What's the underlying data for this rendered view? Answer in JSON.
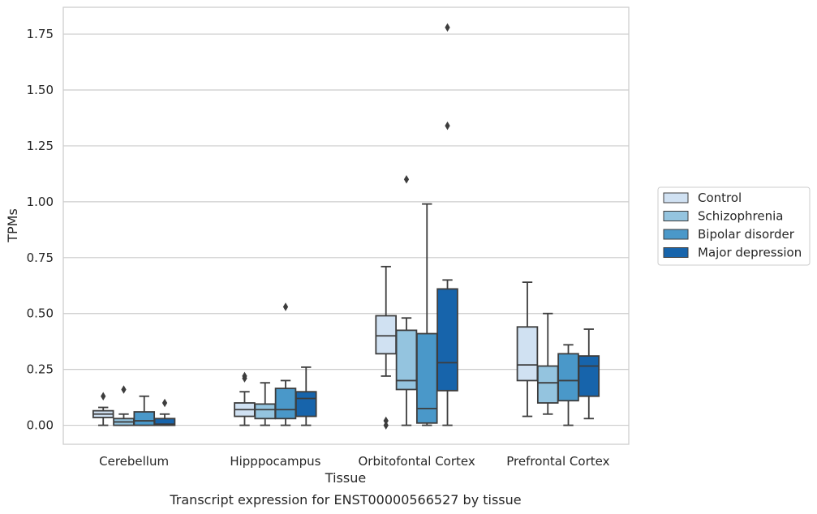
{
  "chart_data": {
    "type": "box",
    "title": "Transcript expression for ENST00000566527 by tissue",
    "xlabel": "Tissue",
    "ylabel": "TPMs",
    "ylim": [
      -0.085,
      1.87
    ],
    "yticks": [
      "0.00",
      "0.25",
      "0.50",
      "0.75",
      "1.00",
      "1.25",
      "1.50",
      "1.75"
    ],
    "grid": true,
    "legend_position": "right",
    "categories": [
      "Cerebellum",
      "Hipppocampus",
      "Orbitofontal Cortex",
      "Prefrontal Cortex"
    ],
    "series": [
      {
        "name": "Control",
        "color": "#d0e1f2",
        "boxes": [
          {
            "whislo": 0.0,
            "q1": 0.035,
            "med": 0.05,
            "q3": 0.065,
            "whishi": 0.08,
            "fliers": [
              0.13
            ]
          },
          {
            "whislo": 0.0,
            "q1": 0.04,
            "med": 0.07,
            "q3": 0.1,
            "whishi": 0.15,
            "fliers": [
              0.21,
              0.22
            ]
          },
          {
            "whislo": 0.22,
            "q1": 0.32,
            "med": 0.4,
            "q3": 0.49,
            "whishi": 0.71,
            "fliers": [
              0.0,
              0.02
            ]
          },
          {
            "whislo": 0.04,
            "q1": 0.2,
            "med": 0.27,
            "q3": 0.44,
            "whishi": 0.64,
            "fliers": []
          }
        ]
      },
      {
        "name": "Schizophrenia",
        "color": "#94c4df",
        "boxes": [
          {
            "whislo": 0.0,
            "q1": 0.0,
            "med": 0.015,
            "q3": 0.03,
            "whishi": 0.05,
            "fliers": [
              0.16
            ]
          },
          {
            "whislo": 0.0,
            "q1": 0.03,
            "med": 0.07,
            "q3": 0.095,
            "whishi": 0.19,
            "fliers": []
          },
          {
            "whislo": 0.0,
            "q1": 0.16,
            "med": 0.2,
            "q3": 0.425,
            "whishi": 0.48,
            "fliers": [
              1.1
            ]
          },
          {
            "whislo": 0.05,
            "q1": 0.1,
            "med": 0.19,
            "q3": 0.265,
            "whishi": 0.5,
            "fliers": []
          }
        ]
      },
      {
        "name": "Bipolar disorder",
        "color": "#4a98c9",
        "boxes": [
          {
            "whislo": 0.0,
            "q1": 0.0,
            "med": 0.02,
            "q3": 0.06,
            "whishi": 0.13,
            "fliers": []
          },
          {
            "whislo": 0.0,
            "q1": 0.03,
            "med": 0.07,
            "q3": 0.165,
            "whishi": 0.2,
            "fliers": [
              0.53
            ]
          },
          {
            "whislo": 0.0,
            "q1": 0.01,
            "med": 0.075,
            "q3": 0.41,
            "whishi": 0.99,
            "fliers": []
          },
          {
            "whislo": 0.0,
            "q1": 0.11,
            "med": 0.2,
            "q3": 0.32,
            "whishi": 0.36,
            "fliers": []
          }
        ]
      },
      {
        "name": "Major depression",
        "color": "#1764ab",
        "boxes": [
          {
            "whislo": 0.0,
            "q1": 0.0,
            "med": 0.005,
            "q3": 0.03,
            "whishi": 0.05,
            "fliers": [
              0.1
            ]
          },
          {
            "whislo": 0.0,
            "q1": 0.04,
            "med": 0.12,
            "q3": 0.15,
            "whishi": 0.26,
            "fliers": []
          },
          {
            "whislo": 0.0,
            "q1": 0.155,
            "med": 0.28,
            "q3": 0.61,
            "whishi": 0.65,
            "fliers": [
              1.34,
              1.78
            ]
          },
          {
            "whislo": 0.03,
            "q1": 0.13,
            "med": 0.265,
            "q3": 0.31,
            "whishi": 0.43,
            "fliers": []
          }
        ]
      }
    ]
  }
}
